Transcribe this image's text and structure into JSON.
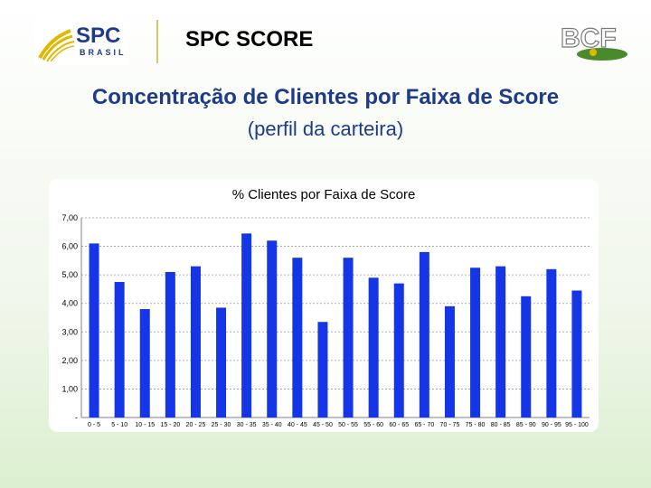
{
  "header": {
    "logo_text": "SPC",
    "logo_subtext": "BRASIL",
    "app_title": "SPC SCORE",
    "partner_logo_text": "BCF"
  },
  "slide": {
    "title": "Concentração de Clientes por Faixa de Score",
    "subtitle": "(perfil da carteira)"
  },
  "colors": {
    "title_blue": "#1d3b8a",
    "bar_blue": "#1436e6",
    "logo_yellow": "#e0b800",
    "bcf_green": "#4a8a2c"
  },
  "chart_data": {
    "type": "bar",
    "title": "% Clientes por Faixa de Score",
    "xlabel": "",
    "ylabel": "",
    "ylim": [
      0,
      7
    ],
    "yticks": [
      "-",
      "1,00",
      "2,00",
      "3,00",
      "4,00",
      "5,00",
      "6,00",
      "7,00"
    ],
    "grid": true,
    "legend": "none",
    "categories": [
      "0 - 5",
      "5 - 10",
      "10 - 15",
      "15 - 20",
      "20 - 25",
      "25 - 30",
      "30 - 35",
      "35 - 40",
      "40 - 45",
      "45 - 50",
      "50 - 55",
      "55 - 60",
      "60 - 65",
      "65 - 70",
      "70 - 75",
      "75 - 80",
      "80 - 85",
      "85 - 90",
      "90 - 95",
      "95 - 100"
    ],
    "values": [
      6.1,
      4.75,
      3.8,
      5.1,
      5.3,
      3.85,
      6.45,
      6.2,
      5.6,
      3.35,
      5.6,
      4.9,
      4.7,
      5.8,
      3.9,
      5.25,
      5.3,
      4.25,
      5.2,
      4.45
    ]
  }
}
